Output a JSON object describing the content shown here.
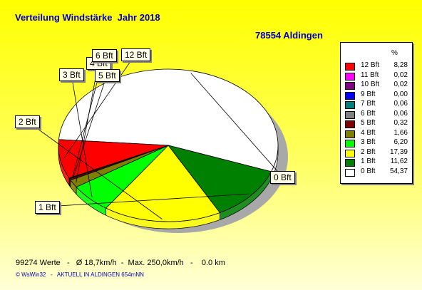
{
  "title": "Verteilung Windstärke  Jahr 2018",
  "subtitle": "78554 Aldingen",
  "legend_header": "%",
  "footer": "99274 Werte   -   Ø 18,7km/h  -  Max. 250,0km/h   -    0.0 km",
  "credit": "© WsWin32   -   AKTUELL IN ALDINGEN 654mNN",
  "chart_data": {
    "type": "pie",
    "title": "Verteilung Windstärke  Jahr 2018",
    "subtitle": "78554 Aldingen",
    "unit": "%",
    "slices": [
      {
        "label": "0 Bft",
        "value": 54.37,
        "value_text": "54,37",
        "color": "#ffffff"
      },
      {
        "label": "1 Bft",
        "value": 11.62,
        "value_text": "11,62",
        "color": "#008000"
      },
      {
        "label": "2 Bft",
        "value": 17.39,
        "value_text": "17,39",
        "color": "#ffff00"
      },
      {
        "label": "3 Bft",
        "value": 6.2,
        "value_text": "6,20",
        "color": "#00ff00"
      },
      {
        "label": "4 Bft",
        "value": 1.66,
        "value_text": "1,66",
        "color": "#808000"
      },
      {
        "label": "5 Bft",
        "value": 0.32,
        "value_text": "0,32",
        "color": "#800000"
      },
      {
        "label": "6 Bft",
        "value": 0.06,
        "value_text": "0,06",
        "color": "#808080"
      },
      {
        "label": "7 Bft",
        "value": 0.06,
        "value_text": "0,06",
        "color": "#008080"
      },
      {
        "label": "9 Bft",
        "value": 0.0,
        "value_text": "0,00",
        "color": "#0000ff"
      },
      {
        "label": "10 Bft",
        "value": 0.02,
        "value_text": "0,02",
        "color": "#800080"
      },
      {
        "label": "11 Bft",
        "value": 0.02,
        "value_text": "0,02",
        "color": "#ff00ff"
      },
      {
        "label": "12 Bft",
        "value": 8.28,
        "value_text": "8,28",
        "color": "#ff0000"
      }
    ],
    "callouts": [
      "0 Bft",
      "1 Bft",
      "2 Bft",
      "3 Bft",
      "4 Bft",
      "5 Bft",
      "6 Bft",
      "12 Bft"
    ],
    "legend_position": "right"
  }
}
